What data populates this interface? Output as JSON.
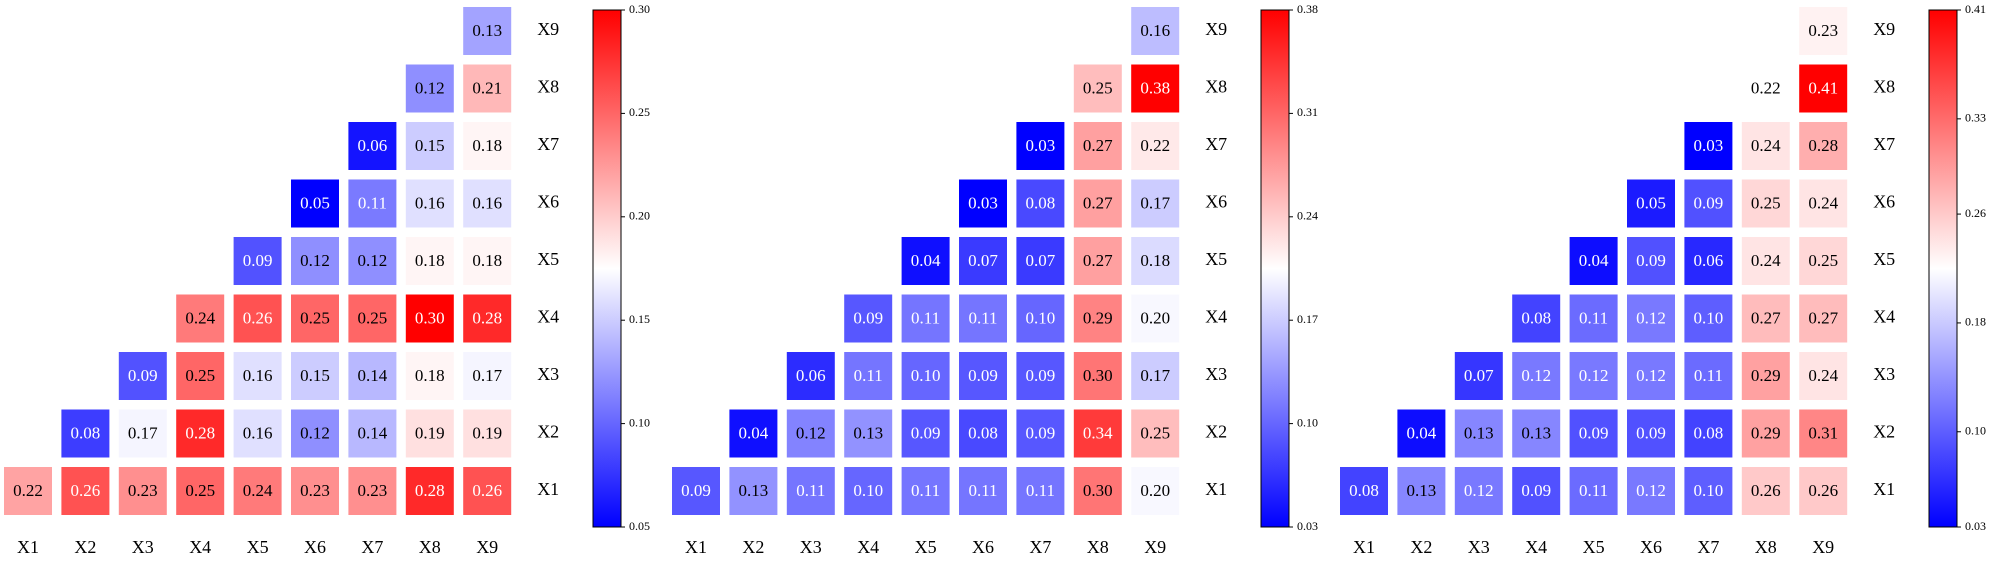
{
  "chart_data": [
    {
      "type": "heatmap",
      "colors": [
        "#0000ff",
        "#ffffff",
        "#ff0000"
      ],
      "x": [
        "X1",
        "X2",
        "X3",
        "X4",
        "X5",
        "X6",
        "X7",
        "X8",
        "X9"
      ],
      "y": [
        "X1",
        "X2",
        "X3",
        "X4",
        "X5",
        "X6",
        "X7",
        "X8",
        "X9"
      ],
      "values": [
        [
          0.22,
          0.26,
          0.23,
          0.25,
          0.24,
          0.23,
          0.23,
          0.28,
          0.26
        ],
        [
          null,
          0.08,
          0.17,
          0.28,
          0.16,
          0.12,
          0.14,
          0.19,
          0.19
        ],
        [
          null,
          null,
          0.09,
          0.25,
          0.16,
          0.15,
          0.14,
          0.18,
          0.17
        ],
        [
          null,
          null,
          null,
          0.24,
          0.26,
          0.25,
          0.25,
          0.3,
          0.28
        ],
        [
          null,
          null,
          null,
          null,
          0.09,
          0.12,
          0.12,
          0.18,
          0.18
        ],
        [
          null,
          null,
          null,
          null,
          null,
          0.05,
          0.11,
          0.16,
          0.16
        ],
        [
          null,
          null,
          null,
          null,
          null,
          null,
          0.06,
          0.15,
          0.18
        ],
        [
          null,
          null,
          null,
          null,
          null,
          null,
          null,
          0.12,
          0.21
        ],
        [
          null,
          null,
          null,
          null,
          null,
          null,
          null,
          null,
          0.13
        ]
      ],
      "value_labels": [
        [
          "0.22",
          "0.26",
          "0.23",
          "0.25",
          "0.24",
          "0.23",
          "0.23",
          "0.28",
          "0.26"
        ],
        [
          null,
          "0.08",
          "0.17",
          "0.28",
          "0.16",
          "0.12",
          "0.14",
          "0.19",
          "0.19"
        ],
        [
          null,
          null,
          "0.09",
          "0.25",
          "0.16",
          "0.15",
          "0.14",
          "0.18",
          "0.17"
        ],
        [
          null,
          null,
          null,
          "0.24",
          "0.26",
          "0.25",
          "0.25",
          "0.30",
          "0.28"
        ],
        [
          null,
          null,
          null,
          null,
          "0.09",
          "0.12",
          "0.12",
          "0.18",
          "0.18"
        ],
        [
          null,
          null,
          null,
          null,
          null,
          "0.05",
          "0.11",
          "0.16",
          "0.16"
        ],
        [
          null,
          null,
          null,
          null,
          null,
          null,
          "0.06",
          "0.15",
          "0.18"
        ],
        [
          null,
          null,
          null,
          null,
          null,
          null,
          null,
          "0.12",
          "0.21"
        ],
        [
          null,
          null,
          null,
          null,
          null,
          null,
          null,
          null,
          "0.13"
        ]
      ],
      "zlim": [
        0.05,
        0.3
      ],
      "zticks": [
        {
          "value": 0.05,
          "label": "0.05"
        },
        {
          "value": 0.1,
          "label": "0.10"
        },
        {
          "value": 0.15,
          "label": "0.15"
        },
        {
          "value": 0.2,
          "label": "0.20"
        },
        {
          "value": 0.25,
          "label": "0.25"
        },
        {
          "value": 0.3,
          "label": "0.30"
        }
      ]
    },
    {
      "type": "heatmap",
      "colors": [
        "#0000ff",
        "#ffffff",
        "#ff0000"
      ],
      "x": [
        "X1",
        "X2",
        "X3",
        "X4",
        "X5",
        "X6",
        "X7",
        "X8",
        "X9"
      ],
      "y": [
        "X1",
        "X2",
        "X3",
        "X4",
        "X5",
        "X6",
        "X7",
        "X8",
        "X9"
      ],
      "values": [
        [
          0.09,
          0.13,
          0.11,
          0.1,
          0.11,
          0.11,
          0.11,
          0.3,
          0.2
        ],
        [
          null,
          0.04,
          0.12,
          0.13,
          0.09,
          0.08,
          0.09,
          0.34,
          0.25
        ],
        [
          null,
          null,
          0.06,
          0.11,
          0.1,
          0.09,
          0.09,
          0.3,
          0.17
        ],
        [
          null,
          null,
          null,
          0.09,
          0.11,
          0.11,
          0.1,
          0.29,
          0.2
        ],
        [
          null,
          null,
          null,
          null,
          0.04,
          0.07,
          0.07,
          0.27,
          0.18
        ],
        [
          null,
          null,
          null,
          null,
          null,
          0.03,
          0.08,
          0.27,
          0.17
        ],
        [
          null,
          null,
          null,
          null,
          null,
          null,
          0.03,
          0.27,
          0.22
        ],
        [
          null,
          null,
          null,
          null,
          null,
          null,
          null,
          0.25,
          0.38
        ],
        [
          null,
          null,
          null,
          null,
          null,
          null,
          null,
          null,
          0.16
        ]
      ],
      "value_labels": [
        [
          "0.09",
          "0.13",
          "0.11",
          "0.10",
          "0.11",
          "0.11",
          "0.11",
          "0.30",
          "0.20"
        ],
        [
          null,
          "0.04",
          "0.12",
          "0.13",
          "0.09",
          "0.08",
          "0.09",
          "0.34",
          "0.25"
        ],
        [
          null,
          null,
          "0.06",
          "0.11",
          "0.10",
          "0.09",
          "0.09",
          "0.30",
          "0.17"
        ],
        [
          null,
          null,
          null,
          "0.09",
          "0.11",
          "0.11",
          "0.10",
          "0.29",
          "0.20"
        ],
        [
          null,
          null,
          null,
          null,
          "0.04",
          "0.07",
          "0.07",
          "0.27",
          "0.18"
        ],
        [
          null,
          null,
          null,
          null,
          null,
          "0.03",
          "0.08",
          "0.27",
          "0.17"
        ],
        [
          null,
          null,
          null,
          null,
          null,
          null,
          "0.03",
          "0.27",
          "0.22"
        ],
        [
          null,
          null,
          null,
          null,
          null,
          null,
          null,
          "0.25",
          "0.38"
        ],
        [
          null,
          null,
          null,
          null,
          null,
          null,
          null,
          null,
          "0.16"
        ]
      ],
      "zlim": [
        0.03,
        0.38
      ],
      "zticks": [
        {
          "value": 0.03,
          "label": "0.03"
        },
        {
          "value": 0.1,
          "label": "0.10"
        },
        {
          "value": 0.17,
          "label": "0.17"
        },
        {
          "value": 0.24,
          "label": "0.24"
        },
        {
          "value": 0.31,
          "label": "0.31"
        },
        {
          "value": 0.38,
          "label": "0.38"
        }
      ]
    },
    {
      "type": "heatmap",
      "colors": [
        "#0000ff",
        "#ffffff",
        "#ff0000"
      ],
      "x": [
        "X1",
        "X2",
        "X3",
        "X4",
        "X5",
        "X6",
        "X7",
        "X8",
        "X9"
      ],
      "y": [
        "X1",
        "X2",
        "X3",
        "X4",
        "X5",
        "X6",
        "X7",
        "X8",
        "X9"
      ],
      "values": [
        [
          0.08,
          0.13,
          0.12,
          0.09,
          0.11,
          0.12,
          0.1,
          0.26,
          0.26
        ],
        [
          null,
          0.04,
          0.13,
          0.13,
          0.09,
          0.09,
          0.08,
          0.29,
          0.31
        ],
        [
          null,
          null,
          0.07,
          0.12,
          0.12,
          0.12,
          0.11,
          0.29,
          0.24
        ],
        [
          null,
          null,
          null,
          0.08,
          0.11,
          0.12,
          0.1,
          0.27,
          0.27
        ],
        [
          null,
          null,
          null,
          null,
          0.04,
          0.09,
          0.06,
          0.24,
          0.25
        ],
        [
          null,
          null,
          null,
          null,
          null,
          0.05,
          0.09,
          0.25,
          0.24
        ],
        [
          null,
          null,
          null,
          null,
          null,
          null,
          0.03,
          0.24,
          0.28
        ],
        [
          null,
          null,
          null,
          null,
          null,
          null,
          null,
          0.22,
          0.41
        ],
        [
          null,
          null,
          null,
          null,
          null,
          null,
          null,
          null,
          0.23
        ]
      ],
      "value_labels": [
        [
          "0.08",
          "0.13",
          "0.12",
          "0.09",
          "0.11",
          "0.12",
          "0.10",
          "0.26",
          "0.26"
        ],
        [
          null,
          "0.04",
          "0.13",
          "0.13",
          "0.09",
          "0.09",
          "0.08",
          "0.29",
          "0.31"
        ],
        [
          null,
          null,
          "0.07",
          "0.12",
          "0.12",
          "0.12",
          "0.11",
          "0.29",
          "0.24"
        ],
        [
          null,
          null,
          null,
          "0.08",
          "0.11",
          "0.12",
          "0.10",
          "0.27",
          "0.27"
        ],
        [
          null,
          null,
          null,
          null,
          "0.04",
          "0.09",
          "0.06",
          "0.24",
          "0.25"
        ],
        [
          null,
          null,
          null,
          null,
          null,
          "0.05",
          "0.09",
          "0.25",
          "0.24"
        ],
        [
          null,
          null,
          null,
          null,
          null,
          null,
          "0.03",
          "0.24",
          "0.28"
        ],
        [
          null,
          null,
          null,
          null,
          null,
          null,
          null,
          "0.22",
          "0.41"
        ],
        [
          null,
          null,
          null,
          null,
          null,
          null,
          null,
          null,
          "0.23"
        ]
      ],
      "zlim": [
        0.03,
        0.41
      ],
      "zticks": [
        {
          "value": 0.03,
          "label": "0.03"
        },
        {
          "value": 0.1,
          "label": "0.10"
        },
        {
          "value": 0.18,
          "label": "0.18"
        },
        {
          "value": 0.26,
          "label": "0.26"
        },
        {
          "value": 0.33,
          "label": "0.33"
        },
        {
          "value": 0.41,
          "label": "0.41"
        }
      ]
    }
  ]
}
